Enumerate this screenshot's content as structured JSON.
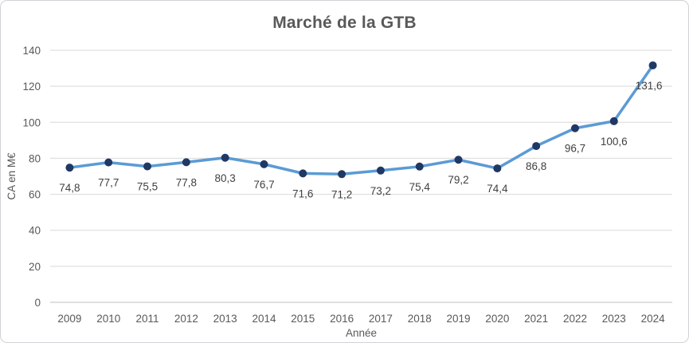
{
  "chart": {
    "title": "Marché de la GTB",
    "x_axis_title": "Année",
    "y_axis_title": "CA en M€"
  },
  "chart_data": {
    "type": "line",
    "title": "Marché de la GTB",
    "xlabel": "Année",
    "ylabel": "CA en M€",
    "categories": [
      "2009",
      "2010",
      "2011",
      "2012",
      "2013",
      "2014",
      "2015",
      "2016",
      "2017",
      "2018",
      "2019",
      "2020",
      "2021",
      "2022",
      "2023",
      "2024"
    ],
    "values": [
      74.8,
      77.7,
      75.5,
      77.8,
      80.3,
      76.7,
      71.6,
      71.2,
      73.2,
      75.4,
      79.2,
      74.4,
      86.8,
      96.7,
      100.6,
      131.6
    ],
    "point_labels": [
      "74,8",
      "77,7",
      "75,5",
      "77,8",
      "80,3",
      "76,7",
      "71,6",
      "71,2",
      "73,2",
      "75,4",
      "79,2",
      "74,4",
      "86,8",
      "96,7",
      "100,6",
      "131,6"
    ],
    "ylim": [
      0,
      140
    ],
    "y_tick_step": 20,
    "y_ticks": [
      "0",
      "20",
      "40",
      "60",
      "80",
      "100",
      "120",
      "140"
    ],
    "grid": true,
    "legend": "none",
    "line_color": "#5B9BD5",
    "marker_color": "#1F3864",
    "gridline_color": "#D9D9D9",
    "axis_line_color": "#BFBFBF",
    "text_color": "#595959",
    "data_label_color": "#404040"
  }
}
